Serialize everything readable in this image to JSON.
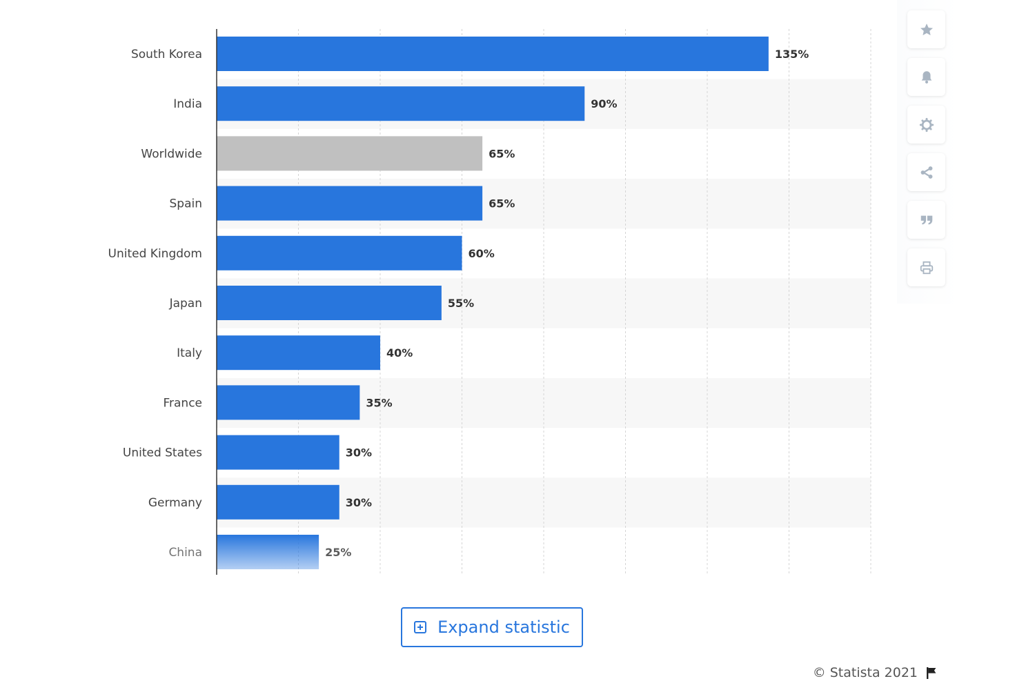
{
  "chart_data": {
    "type": "bar",
    "orientation": "horizontal",
    "categories": [
      "South Korea",
      "India",
      "Worldwide",
      "Spain",
      "United Kingdom",
      "Japan",
      "Italy",
      "France",
      "United States",
      "Germany",
      "China"
    ],
    "values": [
      135,
      90,
      65,
      65,
      60,
      55,
      40,
      35,
      30,
      30,
      25
    ],
    "value_labels": [
      "135%",
      "90%",
      "65%",
      "65%",
      "60%",
      "55%",
      "40%",
      "35%",
      "30%",
      "30%",
      "25%"
    ],
    "highlight_category": "Worldwide",
    "xlim": [
      0,
      160
    ],
    "x_tick_step": 20,
    "grid": true,
    "title": "",
    "xlabel": "",
    "ylabel": ""
  },
  "colors": {
    "bar": "#2876dd",
    "bar_highlight": "#c0c0c0",
    "band": "#f7f7f7",
    "grid": "#d4d4d4",
    "axis": "#333333",
    "icon": "#a9b5c2"
  },
  "actions": {
    "expand_label": "Expand statistic"
  },
  "toolbar": {
    "icons": [
      "star-icon",
      "bell-icon",
      "gear-icon",
      "share-icon",
      "quote-icon",
      "print-icon"
    ]
  },
  "footer": {
    "copyright": "© Statista 2021"
  }
}
